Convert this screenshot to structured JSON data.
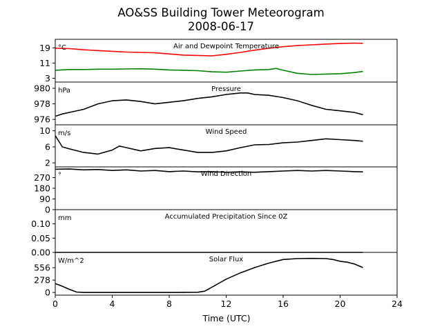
{
  "figure": {
    "title": "AO&SS Building Tower Meteorogram",
    "subtitle": "2008-06-17"
  },
  "chart_data": {
    "type": "line",
    "xlabel": "Time (UTC)",
    "xlim": [
      0,
      24
    ],
    "xticks": [
      0,
      4,
      8,
      12,
      16,
      20,
      24
    ],
    "grid": false,
    "panels": [
      {
        "id": "temperature",
        "title": "Air and Dewpoint Temperature",
        "unit": "°C",
        "ylim": [
          1,
          23.5
        ],
        "yticks": [
          3,
          11,
          19
        ],
        "series": [
          {
            "color": "#ff0000",
            "x": [
              0,
              1,
              2,
              3,
              4,
              5,
              6,
              7,
              8,
              9,
              10,
              11,
              12,
              13,
              14,
              15,
              16,
              17,
              18,
              19,
              20,
              21,
              21.6
            ],
            "values": [
              18.8,
              18.6,
              18.0,
              17.6,
              17.2,
              16.8,
              16.6,
              16.4,
              15.8,
              15.2,
              15.0,
              14.8,
              15.6,
              16.6,
              17.8,
              18.8,
              19.6,
              20.2,
              20.6,
              21.0,
              21.3,
              21.5,
              21.4
            ]
          },
          {
            "color": "#008000",
            "x": [
              0,
              1,
              2,
              3,
              4,
              5,
              6,
              7,
              8,
              9,
              10,
              11,
              12,
              13,
              14,
              15,
              15.5,
              16,
              17,
              18,
              19,
              20,
              21,
              21.6
            ],
            "values": [
              7.2,
              7.6,
              7.6,
              7.8,
              7.8,
              7.9,
              8.0,
              7.8,
              7.4,
              7.2,
              7.0,
              6.4,
              6.2,
              6.8,
              7.4,
              7.6,
              8.2,
              7.2,
              5.6,
              5.0,
              5.2,
              5.4,
              6.0,
              6.6
            ]
          }
        ]
      },
      {
        "id": "pressure",
        "title": "Pressure",
        "unit": "hPa",
        "ylim": [
          975.3,
          980.8
        ],
        "yticks": [
          976,
          978,
          980
        ],
        "series": [
          {
            "color": "#000000",
            "x": [
              0,
              0.5,
              1,
              2,
              3,
              4,
              5,
              6,
              7,
              8,
              9,
              10,
              11,
              12,
              13,
              13.5,
              14,
              15,
              16,
              17,
              18,
              19,
              20,
              21,
              21.6
            ],
            "values": [
              976.4,
              976.7,
              976.9,
              977.3,
              978.0,
              978.4,
              978.5,
              978.3,
              978.0,
              978.2,
              978.4,
              978.7,
              978.9,
              979.2,
              979.4,
              979.4,
              979.2,
              979.1,
              978.8,
              978.4,
              977.8,
              977.3,
              977.1,
              976.9,
              976.6
            ]
          }
        ]
      },
      {
        "id": "wind_speed",
        "title": "Wind Speed",
        "unit": "m/s",
        "ylim": [
          1,
          11.5
        ],
        "yticks": [
          2,
          6,
          10
        ],
        "series": [
          {
            "color": "#000000",
            "x": [
              0,
              0.5,
              1,
              2,
              3,
              4,
              4.5,
              5,
              6,
              7,
              8,
              9,
              10,
              11,
              12,
              13,
              14,
              15,
              16,
              17,
              18,
              19,
              20,
              21,
              21.6
            ],
            "values": [
              8.8,
              6.0,
              5.5,
              4.6,
              4.2,
              5.2,
              6.2,
              5.8,
              5.0,
              5.6,
              5.8,
              5.2,
              4.6,
              4.6,
              5.0,
              5.8,
              6.5,
              6.6,
              7.0,
              7.2,
              7.6,
              8.0,
              7.8,
              7.6,
              7.4
            ]
          }
        ]
      },
      {
        "id": "wind_direction",
        "title": "Wind Direction",
        "unit": "°",
        "ylim": [
          0,
          360
        ],
        "yticks": [
          0,
          90,
          180,
          270
        ],
        "series": [
          {
            "color": "#000000",
            "x": [
              0,
              1,
              2,
              3,
              4,
              5,
              6,
              7,
              8,
              9,
              10,
              11,
              12,
              13,
              14,
              15,
              16,
              17,
              18,
              19,
              20,
              21,
              21.6
            ],
            "values": [
              340,
              342,
              335,
              338,
              330,
              335,
              325,
              330,
              320,
              325,
              318,
              320,
              315,
              318,
              315,
              320,
              325,
              330,
              325,
              330,
              325,
              320,
              318
            ]
          }
        ]
      },
      {
        "id": "precipitation",
        "title": "Accumulated Precipitation Since 0Z",
        "unit": "mm",
        "ylim": [
          0,
          0.15
        ],
        "yticks": [
          0.0,
          0.05,
          0.1
        ],
        "series": [
          {
            "color": "#000000",
            "x": [
              0,
              21.6
            ],
            "values": [
              0,
              0
            ]
          }
        ]
      },
      {
        "id": "solar_flux",
        "title": "Solar Flux",
        "unit": "W/m^2",
        "ylim": [
          -60,
          900
        ],
        "yticks": [
          0,
          278,
          556
        ],
        "series": [
          {
            "color": "#000000",
            "x": [
              0,
              0.5,
              1,
              1.5,
              2,
              3,
              4,
              6,
              8,
              10,
              10.5,
              11,
              12,
              13,
              14,
              15,
              16,
              17,
              18,
              19,
              19.5,
              20,
              20.5,
              21,
              21.6
            ],
            "values": [
              200,
              140,
              70,
              10,
              0,
              0,
              0,
              0,
              0,
              5,
              30,
              120,
              300,
              440,
              560,
              660,
              740,
              760,
              765,
              760,
              740,
              700,
              680,
              640,
              560
            ]
          }
        ]
      }
    ]
  }
}
